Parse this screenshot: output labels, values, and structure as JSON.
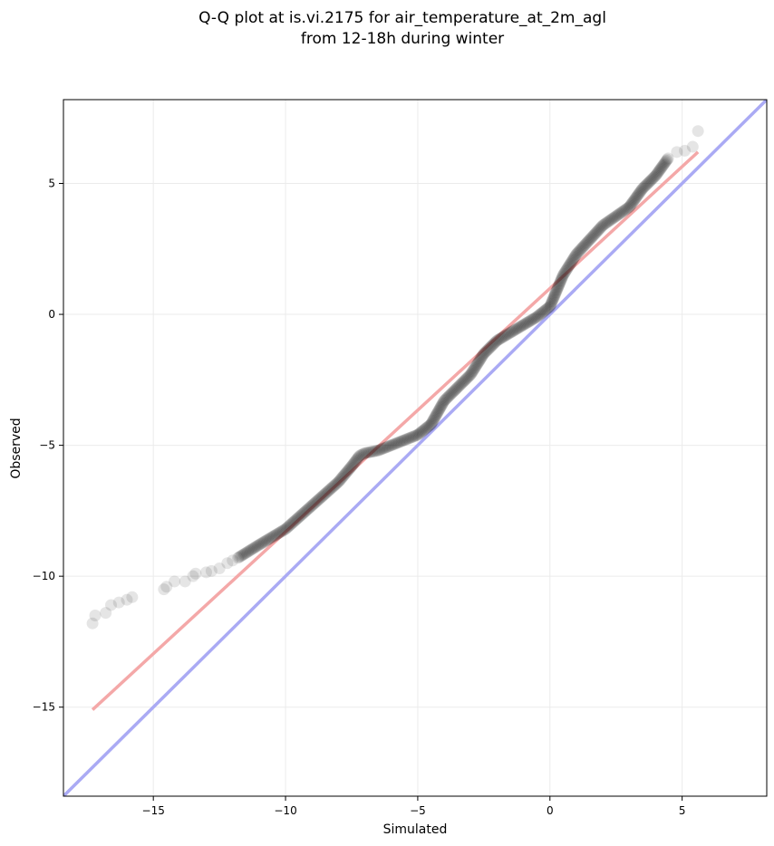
{
  "chart_data": {
    "type": "scatter",
    "title": "Q-Q plot at is.vi.2175 for air_temperature_at_2m_agl",
    "subtitle": "from 12-18h during winter",
    "xlabel": "Simulated",
    "ylabel": "Observed",
    "xlim": [
      -18.4,
      8.2
    ],
    "ylim": [
      -18.4,
      8.2
    ],
    "xticks": [
      -15,
      -10,
      -5,
      0,
      5
    ],
    "yticks": [
      -15,
      -10,
      -5,
      0,
      5
    ],
    "xtick_labels": [
      "−15",
      "−10",
      "−5",
      "0",
      "5"
    ],
    "ytick_labels": [
      "−15",
      "−10",
      "−5",
      "0",
      "5"
    ],
    "grid": true,
    "colors": {
      "points": "#000000",
      "fit_line": "#f4a8a8",
      "identity_line": "#aaaaf4",
      "grid": "#ebebeb"
    },
    "identity_line": {
      "x": [
        -18.4,
        8.2
      ],
      "y": [
        -18.4,
        8.2
      ]
    },
    "fit_line": {
      "x": [
        -17.3,
        5.6
      ],
      "y": [
        -15.1,
        6.2
      ]
    },
    "tail_points": {
      "x": [
        -17.3,
        -17.2,
        -16.8,
        -16.6,
        -16.3,
        -16.0,
        -15.8,
        -14.6,
        -14.5,
        -14.2,
        -13.8,
        -13.5,
        -13.4,
        -13.0,
        -12.8,
        -12.5,
        -12.2,
        -12.0,
        4.8,
        5.1,
        5.4,
        5.6
      ],
      "y": [
        -11.8,
        -11.5,
        -11.4,
        -11.1,
        -11.0,
        -10.9,
        -10.8,
        -10.5,
        -10.4,
        -10.2,
        -10.2,
        -10.0,
        -9.9,
        -9.85,
        -9.8,
        -9.7,
        -9.5,
        -9.4,
        6.2,
        6.25,
        6.4,
        7.0
      ]
    },
    "curve": {
      "x": [
        -11.8,
        -11.0,
        -10.0,
        -9.0,
        -8.0,
        -7.5,
        -7.2,
        -7.0,
        -6.5,
        -6.0,
        -5.5,
        -5.0,
        -4.5,
        -4.0,
        -3.0,
        -2.5,
        -2.0,
        -1.5,
        -1.0,
        -0.5,
        0.0,
        0.5,
        1.0,
        2.0,
        3.0,
        3.5,
        4.0,
        4.5
      ],
      "y": [
        -9.3,
        -8.8,
        -8.2,
        -7.3,
        -6.4,
        -5.8,
        -5.4,
        -5.3,
        -5.2,
        -5.0,
        -4.8,
        -4.6,
        -4.2,
        -3.3,
        -2.3,
        -1.5,
        -1.0,
        -0.7,
        -0.4,
        -0.1,
        0.3,
        1.5,
        2.3,
        3.4,
        4.1,
        4.8,
        5.3,
        6.0
      ]
    }
  }
}
